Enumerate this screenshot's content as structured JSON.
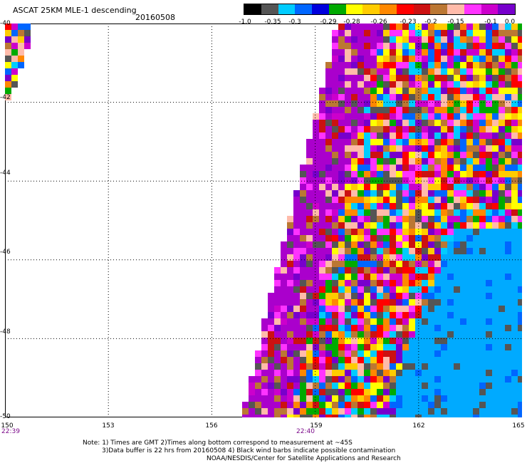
{
  "header": {
    "title": "ASCAT 25KM MLE-1 descending",
    "date": "20160508"
  },
  "colorbar": {
    "colors": [
      "#000000",
      "#555555",
      "#00ccff",
      "#0066ff",
      "#0000dd",
      "#00aa00",
      "#ffff00",
      "#ffcc00",
      "#ff8800",
      "#ff0000",
      "#cc1111",
      "#bb7733",
      "#ffbbaa",
      "#ff33ff",
      "#cc00cc",
      "#7700cc"
    ],
    "labels": [
      "-1.0",
      "-0.35",
      "-0.3",
      "-0.29",
      "-0.28",
      "-0.26",
      "-0.23",
      "-0.2",
      "-0.15",
      "-0.1",
      "0.0"
    ]
  },
  "map": {
    "lat_labels": [
      "-40",
      "-42",
      "-44",
      "-46",
      "-48",
      "-50"
    ],
    "lon_labels": [
      "150",
      "153",
      "156",
      "159",
      "162",
      "165"
    ],
    "lon_range": [
      150,
      165
    ],
    "lat_range": [
      -40,
      -50
    ],
    "time_labels": [
      "22:39",
      "22:40"
    ]
  },
  "notes": [
    "Note: 1) Times are GMT 2)Times along bottom correspond to measurement at ~45S",
    "3)Data buffer is 22 hrs from 20160508 4) Black wind barbs indicate possible contamination",
    "NOAA/NESDIS/Center for Satellite Applications and Research"
  ]
}
